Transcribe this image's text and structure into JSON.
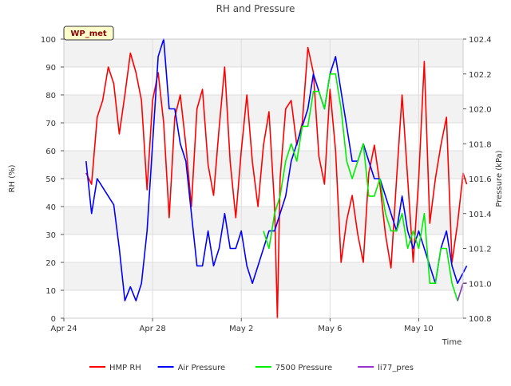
{
  "chart_data": {
    "type": "line",
    "title": "RH and Pressure",
    "site_badge": "WP_met",
    "xlabel": "Time",
    "ylabel_left": "RH (%)",
    "ylabel_right": "Pressure (kPa)",
    "x_range": [
      "2024-04-24",
      "2024-05-12"
    ],
    "ylim_left": [
      0,
      100
    ],
    "ylim_right": [
      100.8,
      102.4
    ],
    "x_ticks": [
      {
        "date": "2024-04-24",
        "label": "Apr 24"
      },
      {
        "date": "2024-04-28",
        "label": "Apr 28"
      },
      {
        "date": "2024-05-02",
        "label": "May 2"
      },
      {
        "date": "2024-05-06",
        "label": "May 6"
      },
      {
        "date": "2024-05-10",
        "label": "May 10"
      }
    ],
    "y_ticks_left": [
      0,
      10,
      20,
      30,
      40,
      50,
      60,
      70,
      80,
      90,
      100
    ],
    "y_ticks_right": [
      "100.8",
      "101.0",
      "101.2",
      "101.4",
      "101.6",
      "101.8",
      "102.0",
      "102.2",
      "102.4"
    ],
    "grid": true,
    "legend_position": "bottom",
    "series": [
      {
        "name": "HMP RH",
        "color": "#ff0000",
        "axis": "left",
        "points": [
          [
            "2024-04-25 00:00",
            52
          ],
          [
            "2024-04-25 06:00",
            48
          ],
          [
            "2024-04-25 12:00",
            72
          ],
          [
            "2024-04-25 18:00",
            78
          ],
          [
            "2024-04-26 00:00",
            90
          ],
          [
            "2024-04-26 06:00",
            84
          ],
          [
            "2024-04-26 12:00",
            66
          ],
          [
            "2024-04-26 18:00",
            80
          ],
          [
            "2024-04-27 00:00",
            95
          ],
          [
            "2024-04-27 06:00",
            88
          ],
          [
            "2024-04-27 12:00",
            78
          ],
          [
            "2024-04-27 18:00",
            46
          ],
          [
            "2024-04-28 00:00",
            78
          ],
          [
            "2024-04-28 06:00",
            88
          ],
          [
            "2024-04-28 12:00",
            70
          ],
          [
            "2024-04-28 18:00",
            36
          ],
          [
            "2024-04-29 00:00",
            72
          ],
          [
            "2024-04-29 06:00",
            80
          ],
          [
            "2024-04-29 12:00",
            62
          ],
          [
            "2024-04-29 18:00",
            40
          ],
          [
            "2024-04-30 00:00",
            75
          ],
          [
            "2024-04-30 06:00",
            82
          ],
          [
            "2024-04-30 12:00",
            55
          ],
          [
            "2024-04-30 18:00",
            44
          ],
          [
            "2024-05-01 00:00",
            68
          ],
          [
            "2024-05-01 06:00",
            90
          ],
          [
            "2024-05-01 12:00",
            56
          ],
          [
            "2024-05-01 18:00",
            36
          ],
          [
            "2024-05-02 00:00",
            60
          ],
          [
            "2024-05-02 06:00",
            80
          ],
          [
            "2024-05-02 12:00",
            56
          ],
          [
            "2024-05-02 18:00",
            40
          ],
          [
            "2024-05-03 00:00",
            62
          ],
          [
            "2024-05-03 06:00",
            74
          ],
          [
            "2024-05-03 12:00",
            40
          ],
          [
            "2024-05-03 15:00",
            0
          ],
          [
            "2024-05-03 18:00",
            50
          ],
          [
            "2024-05-04 00:00",
            75
          ],
          [
            "2024-05-04 06:00",
            78
          ],
          [
            "2024-05-04 12:00",
            62
          ],
          [
            "2024-05-04 18:00",
            70
          ],
          [
            "2024-05-05 00:00",
            97
          ],
          [
            "2024-05-05 06:00",
            88
          ],
          [
            "2024-05-05 12:00",
            58
          ],
          [
            "2024-05-05 18:00",
            48
          ],
          [
            "2024-05-06 00:00",
            82
          ],
          [
            "2024-05-06 06:00",
            60
          ],
          [
            "2024-05-06 12:00",
            20
          ],
          [
            "2024-05-06 18:00",
            35
          ],
          [
            "2024-05-07 00:00",
            44
          ],
          [
            "2024-05-07 06:00",
            30
          ],
          [
            "2024-05-07 12:00",
            20
          ],
          [
            "2024-05-07 18:00",
            52
          ],
          [
            "2024-05-08 00:00",
            62
          ],
          [
            "2024-05-08 06:00",
            48
          ],
          [
            "2024-05-08 12:00",
            30
          ],
          [
            "2024-05-08 18:00",
            18
          ],
          [
            "2024-05-09 00:00",
            50
          ],
          [
            "2024-05-09 06:00",
            80
          ],
          [
            "2024-05-09 12:00",
            50
          ],
          [
            "2024-05-09 18:00",
            20
          ],
          [
            "2024-05-10 00:00",
            50
          ],
          [
            "2024-05-10 06:00",
            92
          ],
          [
            "2024-05-10 12:00",
            34
          ],
          [
            "2024-05-10 18:00",
            50
          ],
          [
            "2024-05-11 00:00",
            62
          ],
          [
            "2024-05-11 06:00",
            72
          ],
          [
            "2024-05-11 12:00",
            20
          ],
          [
            "2024-05-11 18:00",
            34
          ],
          [
            "2024-05-12 00:00",
            52
          ],
          [
            "2024-05-12 04:00",
            48
          ]
        ]
      },
      {
        "name": "Air Pressure",
        "color": "#0000ff",
        "axis": "right",
        "points": [
          [
            "2024-04-25 00:00",
            101.7
          ],
          [
            "2024-04-25 06:00",
            101.4
          ],
          [
            "2024-04-25 12:00",
            101.6
          ],
          [
            "2024-04-26 00:00",
            101.5
          ],
          [
            "2024-04-26 06:00",
            101.45
          ],
          [
            "2024-04-26 12:00",
            101.2
          ],
          [
            "2024-04-26 18:00",
            100.9
          ],
          [
            "2024-04-27 00:00",
            100.98
          ],
          [
            "2024-04-27 06:00",
            100.9
          ],
          [
            "2024-04-27 12:00",
            101.0
          ],
          [
            "2024-04-27 18:00",
            101.3
          ],
          [
            "2024-04-28 00:00",
            101.8
          ],
          [
            "2024-04-28 06:00",
            102.3
          ],
          [
            "2024-04-28 12:00",
            102.4
          ],
          [
            "2024-04-28 18:00",
            102.0
          ],
          [
            "2024-04-29 00:00",
            102.0
          ],
          [
            "2024-04-29 06:00",
            101.8
          ],
          [
            "2024-04-29 12:00",
            101.7
          ],
          [
            "2024-04-29 18:00",
            101.4
          ],
          [
            "2024-04-30 00:00",
            101.1
          ],
          [
            "2024-04-30 06:00",
            101.1
          ],
          [
            "2024-04-30 12:00",
            101.3
          ],
          [
            "2024-04-30 18:00",
            101.1
          ],
          [
            "2024-05-01 00:00",
            101.2
          ],
          [
            "2024-05-01 06:00",
            101.4
          ],
          [
            "2024-05-01 12:00",
            101.2
          ],
          [
            "2024-05-01 18:00",
            101.2
          ],
          [
            "2024-05-02 00:00",
            101.3
          ],
          [
            "2024-05-02 06:00",
            101.1
          ],
          [
            "2024-05-02 12:00",
            101.0
          ],
          [
            "2024-05-02 18:00",
            101.1
          ],
          [
            "2024-05-03 00:00",
            101.2
          ],
          [
            "2024-05-03 06:00",
            101.3
          ],
          [
            "2024-05-03 12:00",
            101.3
          ],
          [
            "2024-05-03 18:00",
            101.4
          ],
          [
            "2024-05-04 00:00",
            101.5
          ],
          [
            "2024-05-04 06:00",
            101.7
          ],
          [
            "2024-05-04 12:00",
            101.8
          ],
          [
            "2024-05-04 18:00",
            101.9
          ],
          [
            "2024-05-05 00:00",
            102.0
          ],
          [
            "2024-05-05 06:00",
            102.2
          ],
          [
            "2024-05-05 12:00",
            102.1
          ],
          [
            "2024-05-05 18:00",
            102.0
          ],
          [
            "2024-05-06 00:00",
            102.2
          ],
          [
            "2024-05-06 06:00",
            102.3
          ],
          [
            "2024-05-06 12:00",
            102.1
          ],
          [
            "2024-05-06 18:00",
            101.9
          ],
          [
            "2024-05-07 00:00",
            101.7
          ],
          [
            "2024-05-07 06:00",
            101.7
          ],
          [
            "2024-05-07 12:00",
            101.8
          ],
          [
            "2024-05-07 18:00",
            101.7
          ],
          [
            "2024-05-08 00:00",
            101.6
          ],
          [
            "2024-05-08 06:00",
            101.6
          ],
          [
            "2024-05-08 12:00",
            101.5
          ],
          [
            "2024-05-08 18:00",
            101.4
          ],
          [
            "2024-05-09 00:00",
            101.3
          ],
          [
            "2024-05-09 06:00",
            101.5
          ],
          [
            "2024-05-09 12:00",
            101.3
          ],
          [
            "2024-05-09 18:00",
            101.2
          ],
          [
            "2024-05-10 00:00",
            101.3
          ],
          [
            "2024-05-10 06:00",
            101.2
          ],
          [
            "2024-05-10 12:00",
            101.1
          ],
          [
            "2024-05-10 18:00",
            101.0
          ],
          [
            "2024-05-11 00:00",
            101.2
          ],
          [
            "2024-05-11 06:00",
            101.3
          ],
          [
            "2024-05-11 12:00",
            101.1
          ],
          [
            "2024-05-11 18:00",
            101.0
          ],
          [
            "2024-05-12 04:00",
            101.1
          ]
        ]
      },
      {
        "name": "7500 Pressure",
        "color": "#00ee00",
        "axis": "right",
        "points": [
          [
            "2024-05-03 00:00",
            101.3
          ],
          [
            "2024-05-03 06:00",
            101.2
          ],
          [
            "2024-05-03 12:00",
            101.4
          ],
          [
            "2024-05-03 18:00",
            101.5
          ],
          [
            "2024-05-04 00:00",
            101.7
          ],
          [
            "2024-05-04 06:00",
            101.8
          ],
          [
            "2024-05-04 12:00",
            101.7
          ],
          [
            "2024-05-04 18:00",
            101.9
          ],
          [
            "2024-05-05 00:00",
            101.9
          ],
          [
            "2024-05-05 06:00",
            102.1
          ],
          [
            "2024-05-05 12:00",
            102.1
          ],
          [
            "2024-05-05 18:00",
            102.0
          ],
          [
            "2024-05-06 00:00",
            102.2
          ],
          [
            "2024-05-06 06:00",
            102.2
          ],
          [
            "2024-05-06 12:00",
            102.0
          ],
          [
            "2024-05-06 18:00",
            101.7
          ],
          [
            "2024-05-07 00:00",
            101.6
          ],
          [
            "2024-05-07 06:00",
            101.7
          ],
          [
            "2024-05-07 12:00",
            101.8
          ],
          [
            "2024-05-07 18:00",
            101.5
          ],
          [
            "2024-05-08 00:00",
            101.5
          ],
          [
            "2024-05-08 06:00",
            101.6
          ],
          [
            "2024-05-08 12:00",
            101.4
          ],
          [
            "2024-05-08 18:00",
            101.3
          ],
          [
            "2024-05-09 00:00",
            101.3
          ],
          [
            "2024-05-09 06:00",
            101.4
          ],
          [
            "2024-05-09 12:00",
            101.2
          ],
          [
            "2024-05-09 18:00",
            101.3
          ],
          [
            "2024-05-10 00:00",
            101.2
          ],
          [
            "2024-05-10 06:00",
            101.4
          ],
          [
            "2024-05-10 12:00",
            101.0
          ],
          [
            "2024-05-10 18:00",
            101.0
          ],
          [
            "2024-05-11 00:00",
            101.2
          ],
          [
            "2024-05-11 06:00",
            101.2
          ],
          [
            "2024-05-11 12:00",
            101.0
          ],
          [
            "2024-05-11 18:00",
            100.9
          ],
          [
            "2024-05-12 00:00",
            101.0
          ]
        ]
      },
      {
        "name": "li77_pres",
        "color": "#9933cc",
        "axis": "right",
        "points": [
          [
            "2024-05-11 18:00",
            100.9
          ],
          [
            "2024-05-12 00:00",
            101.0
          ],
          [
            "2024-05-12 04:00",
            101.0
          ]
        ]
      }
    ]
  }
}
